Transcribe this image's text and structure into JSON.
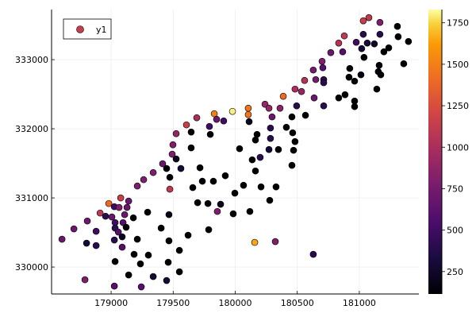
{
  "chart_data": {
    "type": "scatter",
    "title": "",
    "xlabel": "",
    "ylabel": "",
    "xlim": [
      178520,
      181480
    ],
    "ylim": [
      329610,
      333725
    ],
    "xticks": [
      179000,
      179500,
      180000,
      180500,
      181000
    ],
    "xtick_labels": [
      "179000",
      "179500",
      "180000",
      "180500",
      "181000"
    ],
    "yticks": [
      330000,
      331000,
      332000,
      333000
    ],
    "ytick_labels": [
      "330000",
      "331000",
      "332000",
      "333000"
    ],
    "grid": true,
    "legend": {
      "entries": [
        "y1"
      ],
      "placement": "top-left",
      "marker_color": "#c83a4e"
    },
    "colorbar": {
      "colormap": "inferno",
      "clim": [
        115,
        1830
      ],
      "ticks": [
        250,
        500,
        750,
        1000,
        1250,
        1500,
        1750
      ],
      "tick_labels": [
        "250",
        "500",
        "750",
        "1000",
        "1250",
        "1500",
        "1750"
      ]
    },
    "series": [
      {
        "name": "y1",
        "points_xyc": [
          [
            181032,
            333562,
            1150
          ],
          [
            181077,
            333608,
            1100
          ],
          [
            181166,
            333539,
            800
          ],
          [
            181307,
            333481,
            100
          ],
          [
            181396,
            333263,
            100
          ],
          [
            181313,
            333332,
            100
          ],
          [
            181166,
            333367,
            400
          ],
          [
            181032,
            333367,
            400
          ],
          [
            180879,
            333344,
            1100
          ],
          [
            180834,
            333240,
            1050
          ],
          [
            180975,
            333252,
            500
          ],
          [
            181064,
            333240,
            300
          ],
          [
            181121,
            333229,
            250
          ],
          [
            181019,
            333160,
            300
          ],
          [
            181237,
            333171,
            100
          ],
          [
            181198,
            333114,
            100
          ],
          [
            180866,
            333114,
            600
          ],
          [
            180770,
            333102,
            700
          ],
          [
            181038,
            333033,
            100
          ],
          [
            181358,
            332941,
            100
          ],
          [
            181160,
            332918,
            100
          ],
          [
            180923,
            332873,
            100
          ],
          [
            181153,
            332827,
            100
          ],
          [
            181173,
            332781,
            100
          ],
          [
            180917,
            332746,
            100
          ],
          [
            181013,
            332781,
            150
          ],
          [
            180962,
            332689,
            100
          ],
          [
            180700,
            332976,
            800
          ],
          [
            180706,
            332884,
            600
          ],
          [
            180629,
            332850,
            750
          ],
          [
            180559,
            332700,
            1050
          ],
          [
            180649,
            332712,
            750
          ],
          [
            180713,
            332712,
            400
          ],
          [
            180713,
            332666,
            400
          ],
          [
            181141,
            332574,
            100
          ],
          [
            180885,
            332493,
            100
          ],
          [
            180834,
            332447,
            100
          ],
          [
            180962,
            332401,
            100
          ],
          [
            180962,
            332321,
            100
          ],
          [
            180636,
            332447,
            700
          ],
          [
            180713,
            332332,
            400
          ],
          [
            180566,
            332195,
            100
          ],
          [
            180534,
            332539,
            900
          ],
          [
            180482,
            332574,
            1000
          ],
          [
            180387,
            332470,
            1400
          ],
          [
            180240,
            332355,
            900
          ],
          [
            180272,
            332298,
            900
          ],
          [
            180361,
            332298,
            850
          ],
          [
            180495,
            332332,
            400
          ],
          [
            180105,
            332298,
            1450
          ],
          [
            180105,
            332206,
            1450
          ],
          [
            179978,
            332252,
            1800
          ],
          [
            179831,
            332218,
            1500
          ],
          [
            179690,
            332160,
            1000
          ],
          [
            179607,
            332057,
            1150
          ],
          [
            179850,
            332137,
            700
          ],
          [
            179907,
            332114,
            500
          ],
          [
            179792,
            332034,
            500
          ],
          [
            180112,
            332103,
            200
          ],
          [
            180297,
            332172,
            700
          ],
          [
            180457,
            332172,
            100
          ],
          [
            180284,
            332011,
            400
          ],
          [
            180412,
            332022,
            100
          ],
          [
            180463,
            331942,
            100
          ],
          [
            180176,
            331919,
            100
          ],
          [
            180163,
            331838,
            100
          ],
          [
            180284,
            331861,
            400
          ],
          [
            180482,
            331815,
            100
          ],
          [
            179645,
            331953,
            100
          ],
          [
            179524,
            331930,
            900
          ],
          [
            179799,
            331919,
            100
          ],
          [
            179498,
            331769,
            800
          ],
          [
            179492,
            331632,
            800
          ],
          [
            179524,
            331563,
            200
          ],
          [
            179645,
            331724,
            100
          ],
          [
            180035,
            331712,
            100
          ],
          [
            180272,
            331700,
            300
          ],
          [
            180348,
            331700,
            100
          ],
          [
            180470,
            331689,
            100
          ],
          [
            179415,
            331494,
            700
          ],
          [
            179447,
            331425,
            100
          ],
          [
            179562,
            331425,
            300
          ],
          [
            179716,
            331436,
            100
          ],
          [
            180137,
            331551,
            100
          ],
          [
            180201,
            331586,
            400
          ],
          [
            180457,
            331471,
            100
          ],
          [
            179339,
            331367,
            800
          ],
          [
            179473,
            331298,
            100
          ],
          [
            180163,
            331390,
            100
          ],
          [
            179920,
            331321,
            100
          ],
          [
            179262,
            331264,
            800
          ],
          [
            179735,
            331241,
            100
          ],
          [
            179824,
            331241,
            100
          ],
          [
            179658,
            331149,
            100
          ],
          [
            179473,
            331126,
            1100
          ],
          [
            180067,
            331183,
            100
          ],
          [
            180208,
            331160,
            100
          ],
          [
            180329,
            331160,
            100
          ],
          [
            179997,
            331069,
            100
          ],
          [
            179697,
            330931,
            100
          ],
          [
            179780,
            330919,
            100
          ],
          [
            179882,
            330908,
            200
          ],
          [
            180278,
            330965,
            100
          ],
          [
            179294,
            330793,
            100
          ],
          [
            179466,
            330758,
            200
          ],
          [
            179856,
            330804,
            800
          ],
          [
            179984,
            330770,
            100
          ],
          [
            180118,
            330804,
            100
          ],
          [
            179403,
            330563,
            100
          ],
          [
            179786,
            330540,
            100
          ],
          [
            179620,
            330460,
            100
          ],
          [
            179466,
            330379,
            100
          ],
          [
            180157,
            330356,
            1650
          ],
          [
            180323,
            330368,
            800
          ],
          [
            180629,
            330184,
            400
          ],
          [
            179550,
            330241,
            100
          ],
          [
            179300,
            330172,
            100
          ],
          [
            179460,
            330069,
            100
          ],
          [
            179211,
            331172,
            800
          ],
          [
            179077,
            331000,
            1150
          ],
          [
            178981,
            330919,
            1400
          ],
          [
            179141,
            330954,
            700
          ],
          [
            179026,
            330873,
            500
          ],
          [
            179064,
            330862,
            800
          ],
          [
            179128,
            330862,
            700
          ],
          [
            178911,
            330781,
            1100
          ],
          [
            178955,
            330735,
            400
          ],
          [
            179006,
            330724,
            700
          ],
          [
            179109,
            330758,
            700
          ],
          [
            178808,
            330666,
            700
          ],
          [
            179179,
            330712,
            100
          ],
          [
            179032,
            330643,
            500
          ],
          [
            179096,
            330643,
            600
          ],
          [
            178700,
            330552,
            700
          ],
          [
            178879,
            330517,
            500
          ],
          [
            179121,
            330575,
            100
          ],
          [
            179032,
            330563,
            400
          ],
          [
            179058,
            330506,
            600
          ],
          [
            178604,
            330402,
            700
          ],
          [
            178802,
            330345,
            300
          ],
          [
            178879,
            330310,
            400
          ],
          [
            179026,
            330391,
            400
          ],
          [
            179089,
            330437,
            200
          ],
          [
            179211,
            330402,
            100
          ],
          [
            179089,
            330287,
            600
          ],
          [
            179185,
            330184,
            100
          ],
          [
            179032,
            330080,
            100
          ],
          [
            179236,
            330046,
            100
          ],
          [
            179141,
            329885,
            100
          ],
          [
            179339,
            329862,
            300
          ],
          [
            179550,
            329931,
            100
          ],
          [
            178789,
            329816,
            800
          ],
          [
            179447,
            329805,
            300
          ],
          [
            179026,
            329724,
            600
          ],
          [
            179243,
            329713,
            600
          ]
        ]
      }
    ]
  }
}
